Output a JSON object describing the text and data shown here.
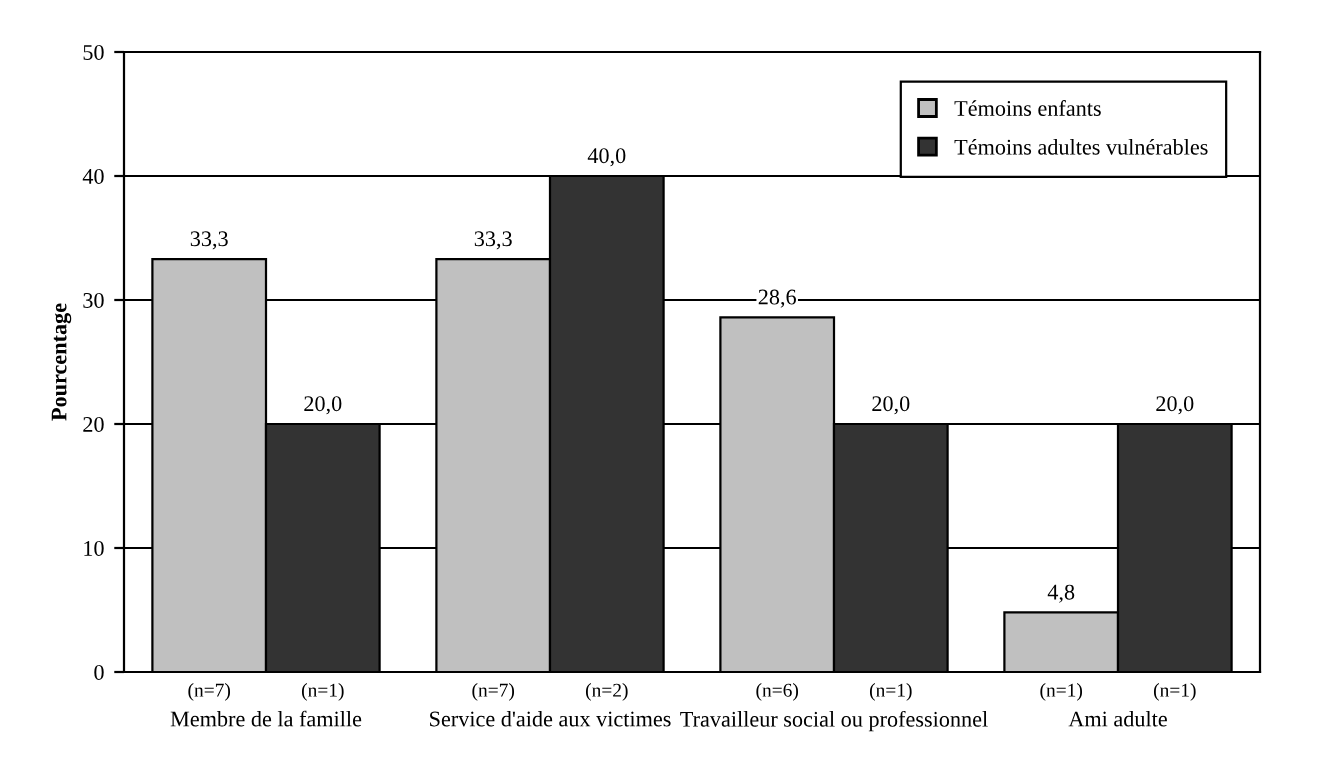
{
  "chart_data": {
    "type": "bar",
    "ylabel": "Pourcentage",
    "categories": [
      "Membre de la famille",
      "Service d'aide aux victimes",
      "Travailleur social ou professionnel",
      "Ami adulte"
    ],
    "series": [
      {
        "name": "Témoins enfants",
        "color": "#c0c0c0",
        "values": [
          33.3,
          33.3,
          28.6,
          4.8
        ],
        "value_labels": [
          "33,3",
          "33,3",
          "28,6",
          "4,8"
        ]
      },
      {
        "name": "Témoins adultes vulnérables",
        "color": "#333333",
        "values": [
          20.0,
          40.0,
          20.0,
          20.0
        ],
        "value_labels": [
          "20,0",
          "40,0",
          "20,0",
          "20,0"
        ]
      }
    ],
    "annotations": [
      "(n=7)",
      "(n=1)",
      "(n=7)",
      "(n=2)",
      "(n=6)",
      "(n=1)",
      "(n=1)",
      "(n=1)"
    ],
    "ylim": [
      0,
      50
    ],
    "yticks": [
      0,
      10,
      20,
      30,
      40,
      50
    ],
    "grid": "y",
    "legend": "top right"
  }
}
